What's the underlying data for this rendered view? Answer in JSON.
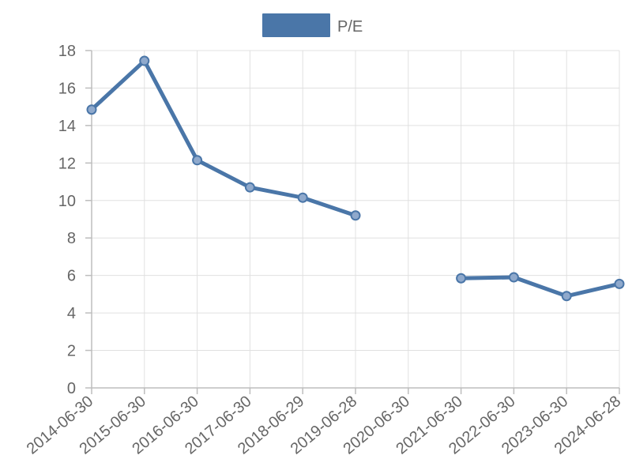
{
  "chart_data": {
    "type": "line",
    "categories": [
      "2014-06-30",
      "2015-06-30",
      "2016-06-30",
      "2017-06-30",
      "2018-06-29",
      "2019-06-28",
      "2020-06-30",
      "2021-06-30",
      "2022-06-30",
      "2023-06-30",
      "2024-06-28"
    ],
    "series": [
      {
        "name": "P/E",
        "values": [
          14.85,
          17.45,
          12.15,
          10.7,
          10.15,
          9.2,
          null,
          5.85,
          5.9,
          4.9,
          5.55
        ]
      }
    ],
    "yticks": [
      "0",
      "2",
      "4",
      "6",
      "8",
      "10",
      "12",
      "14",
      "16",
      "18"
    ],
    "ylim": [
      0,
      18
    ],
    "grid": true,
    "legend_position": "top",
    "colors": {
      "line": "#4a76a8",
      "point_fill": "#8fa9cc",
      "legend_swatch": "#4a76a8"
    }
  }
}
